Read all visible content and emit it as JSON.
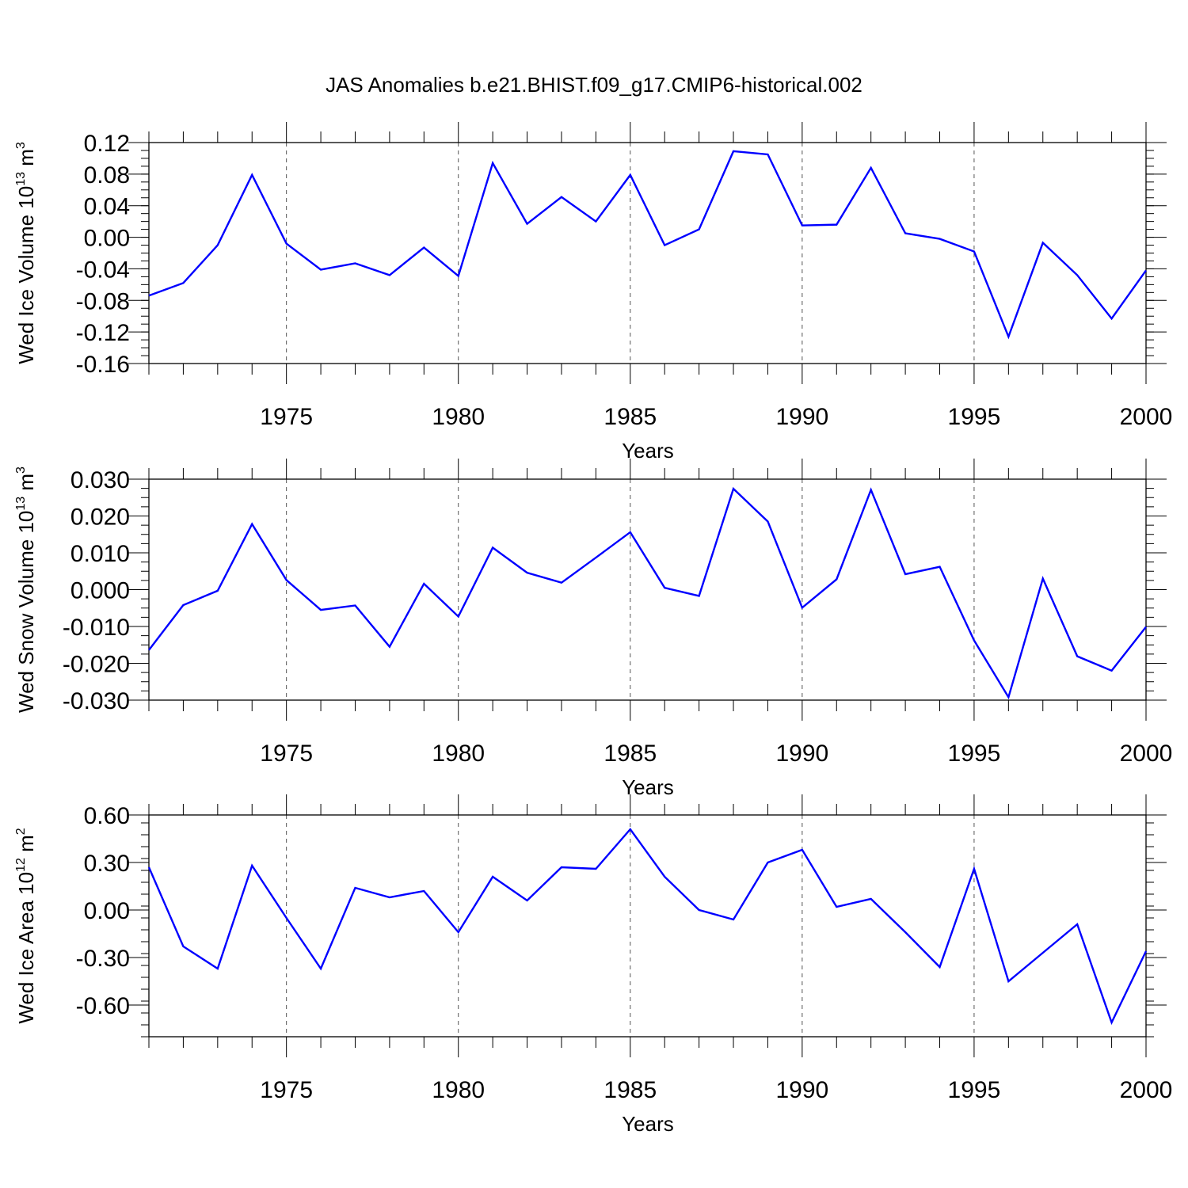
{
  "title": "JAS Anomalies b.e21.BHIST.f09_g17.CMIP6-historical.002",
  "colors": {
    "line": "#0000ff",
    "axis": "#000000",
    "grid": "#555555"
  },
  "chart_data": [
    {
      "type": "line",
      "ylabel": {
        "text": "Wed Ice Volume 10",
        "sup": "13",
        "unit": " m",
        "unit_sup": "3"
      },
      "xlabel": "Years",
      "xlim": [
        1971,
        2000
      ],
      "ylim": [
        -0.16,
        0.12
      ],
      "yticks": [
        -0.16,
        -0.12,
        -0.08,
        -0.04,
        0.0,
        0.04,
        0.08,
        0.12
      ],
      "ytick_labels": [
        "-0.16",
        "-0.12",
        "-0.08",
        "-0.04",
        "0.00",
        "0.04",
        "0.08",
        "0.12"
      ],
      "xticks": [
        1975,
        1980,
        1985,
        1990,
        1995,
        2000
      ],
      "xtick_labels": [
        "1975",
        "1980",
        "1985",
        "1990",
        "1995",
        "2000"
      ],
      "grid": "vertical dashed at major x ticks",
      "x": [
        1971,
        1972,
        1973,
        1974,
        1975,
        1976,
        1977,
        1978,
        1979,
        1980,
        1981,
        1982,
        1983,
        1984,
        1985,
        1986,
        1987,
        1988,
        1989,
        1990,
        1991,
        1992,
        1993,
        1994,
        1995,
        1996,
        1997,
        1998,
        1999,
        2000
      ],
      "values": [
        -0.074,
        -0.058,
        -0.01,
        0.079,
        -0.008,
        -0.041,
        -0.033,
        -0.048,
        -0.013,
        -0.049,
        0.094,
        0.017,
        0.051,
        0.02,
        0.079,
        -0.01,
        0.01,
        0.109,
        0.105,
        0.015,
        0.016,
        0.088,
        0.005,
        -0.002,
        -0.018,
        -0.126,
        -0.007,
        -0.048,
        -0.103,
        -0.042
      ]
    },
    {
      "type": "line",
      "ylabel": {
        "text": "Wed Snow Volume 10",
        "sup": "13",
        "unit": " m",
        "unit_sup": "3"
      },
      "xlabel": "Years",
      "xlim": [
        1971,
        2000
      ],
      "ylim": [
        -0.03,
        0.03
      ],
      "yticks": [
        -0.03,
        -0.02,
        -0.01,
        0.0,
        0.01,
        0.02,
        0.03
      ],
      "ytick_labels": [
        "-0.030",
        "-0.020",
        "-0.010",
        "0.000",
        "0.010",
        "0.020",
        "0.030"
      ],
      "xticks": [
        1975,
        1980,
        1985,
        1990,
        1995,
        2000
      ],
      "xtick_labels": [
        "1975",
        "1980",
        "1985",
        "1990",
        "1995",
        "2000"
      ],
      "grid": "vertical dashed at major x ticks",
      "x": [
        1971,
        1972,
        1973,
        1974,
        1975,
        1976,
        1977,
        1978,
        1979,
        1980,
        1981,
        1982,
        1983,
        1984,
        1985,
        1986,
        1987,
        1988,
        1989,
        1990,
        1991,
        1992,
        1993,
        1994,
        1995,
        1996,
        1997,
        1998,
        1999,
        2000
      ],
      "values": [
        -0.0164,
        -0.0042,
        -0.0003,
        0.0178,
        0.0026,
        -0.0055,
        -0.0043,
        -0.0155,
        0.0016,
        -0.0073,
        0.0114,
        0.0046,
        0.0019,
        0.0087,
        0.0156,
        0.0005,
        -0.0017,
        0.0274,
        0.0185,
        -0.0049,
        0.0028,
        0.0271,
        0.0042,
        0.0062,
        -0.0138,
        -0.0292,
        0.003,
        -0.0181,
        -0.022,
        -0.0101
      ]
    },
    {
      "type": "line",
      "ylabel": {
        "text": "Wed Ice Area 10",
        "sup": "12",
        "unit": " m",
        "unit_sup": "2"
      },
      "xlabel": "Years",
      "xlim": [
        1971,
        2000
      ],
      "ylim": [
        -0.8,
        0.6
      ],
      "yticks": [
        -0.6,
        -0.3,
        0.0,
        0.3,
        0.6
      ],
      "ytick_labels": [
        "-0.60",
        "-0.30",
        "0.00",
        "0.30",
        "0.60"
      ],
      "xticks": [
        1975,
        1980,
        1985,
        1990,
        1995,
        2000
      ],
      "xtick_labels": [
        "1975",
        "1980",
        "1985",
        "1990",
        "1995",
        "2000"
      ],
      "grid": "vertical dashed at major x ticks",
      "x": [
        1971,
        1972,
        1973,
        1974,
        1975,
        1976,
        1977,
        1978,
        1979,
        1980,
        1981,
        1982,
        1983,
        1984,
        1985,
        1986,
        1987,
        1988,
        1989,
        1990,
        1991,
        1992,
        1993,
        1994,
        1995,
        1996,
        1997,
        1998,
        1999,
        2000
      ],
      "values": [
        0.27,
        -0.23,
        -0.37,
        0.28,
        -0.05,
        -0.37,
        0.14,
        0.08,
        0.12,
        -0.14,
        0.21,
        0.06,
        0.27,
        0.26,
        0.51,
        0.21,
        0.0,
        -0.06,
        0.3,
        0.38,
        0.02,
        0.07,
        -0.14,
        -0.36,
        0.26,
        -0.45,
        -0.27,
        -0.09,
        -0.71,
        -0.26
      ]
    }
  ]
}
